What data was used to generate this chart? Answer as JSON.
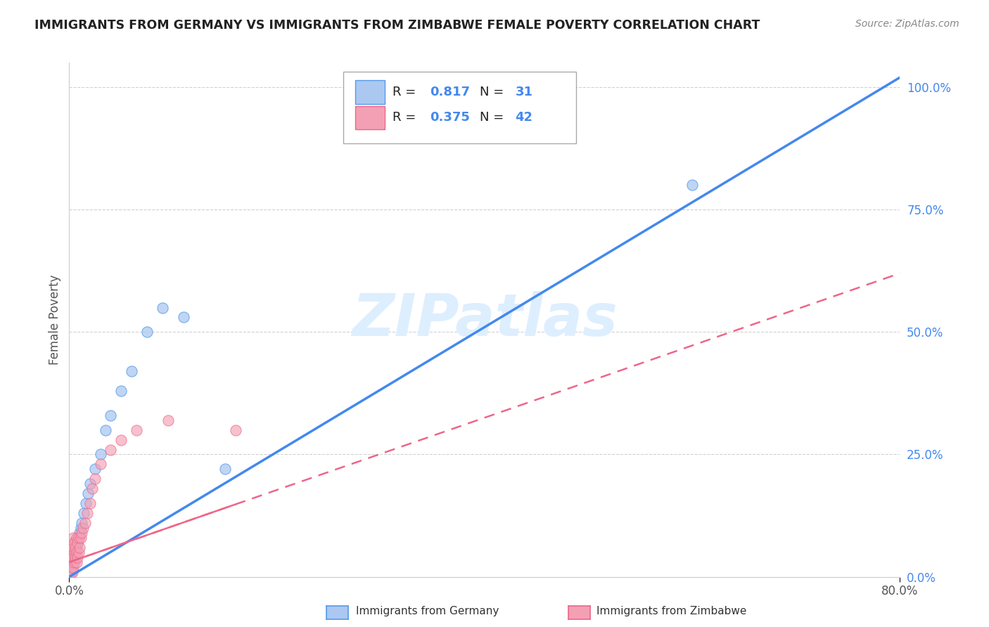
{
  "title": "IMMIGRANTS FROM GERMANY VS IMMIGRANTS FROM ZIMBABWE FEMALE POVERTY CORRELATION CHART",
  "source": "Source: ZipAtlas.com",
  "ylabel": "Female Poverty",
  "x_min": 0.0,
  "x_max": 0.8,
  "y_min": 0.0,
  "y_max": 1.05,
  "yticks": [
    0.0,
    0.25,
    0.5,
    0.75,
    1.0
  ],
  "ytick_labels": [
    "0.0%",
    "25.0%",
    "50.0%",
    "75.0%",
    "100.0%"
  ],
  "germany_R": 0.817,
  "germany_N": 31,
  "zimbabwe_R": 0.375,
  "zimbabwe_N": 42,
  "germany_color": "#aac8f0",
  "zimbabwe_color": "#f4a0b4",
  "germany_edge_color": "#5599ee",
  "zimbabwe_edge_color": "#ee6688",
  "germany_line_color": "#4488ee",
  "zimbabwe_line_color": "#ee6688",
  "watermark_color": "#ddeeff",
  "background_color": "#ffffff",
  "grid_color": "#cccccc",
  "label_color_blue": "#4488ee",
  "germany_scatter_x": [
    0.001,
    0.002,
    0.002,
    0.003,
    0.003,
    0.004,
    0.004,
    0.005,
    0.005,
    0.006,
    0.007,
    0.008,
    0.009,
    0.01,
    0.011,
    0.012,
    0.014,
    0.016,
    0.018,
    0.02,
    0.025,
    0.03,
    0.035,
    0.04,
    0.05,
    0.06,
    0.075,
    0.09,
    0.11,
    0.15,
    0.6
  ],
  "germany_scatter_y": [
    0.01,
    0.01,
    0.02,
    0.02,
    0.03,
    0.03,
    0.04,
    0.04,
    0.05,
    0.05,
    0.06,
    0.07,
    0.08,
    0.09,
    0.1,
    0.11,
    0.13,
    0.15,
    0.17,
    0.19,
    0.22,
    0.25,
    0.3,
    0.33,
    0.38,
    0.42,
    0.5,
    0.55,
    0.53,
    0.22,
    0.8
  ],
  "zimbabwe_scatter_x": [
    0.001,
    0.001,
    0.001,
    0.002,
    0.002,
    0.002,
    0.002,
    0.003,
    0.003,
    0.003,
    0.003,
    0.004,
    0.004,
    0.004,
    0.004,
    0.005,
    0.005,
    0.005,
    0.006,
    0.006,
    0.007,
    0.007,
    0.007,
    0.008,
    0.008,
    0.009,
    0.009,
    0.01,
    0.011,
    0.012,
    0.013,
    0.015,
    0.017,
    0.02,
    0.022,
    0.025,
    0.03,
    0.04,
    0.05,
    0.065,
    0.095,
    0.16
  ],
  "zimbabwe_scatter_y": [
    0.01,
    0.02,
    0.03,
    0.01,
    0.02,
    0.04,
    0.05,
    0.01,
    0.03,
    0.05,
    0.07,
    0.02,
    0.04,
    0.06,
    0.08,
    0.03,
    0.05,
    0.07,
    0.04,
    0.06,
    0.03,
    0.05,
    0.08,
    0.04,
    0.07,
    0.05,
    0.08,
    0.06,
    0.08,
    0.09,
    0.1,
    0.11,
    0.13,
    0.15,
    0.18,
    0.2,
    0.23,
    0.26,
    0.28,
    0.3,
    0.32,
    0.3
  ],
  "germany_line_x": [
    0.0,
    0.8
  ],
  "germany_line_y": [
    0.0,
    1.02
  ],
  "zimbabwe_line_x": [
    0.0,
    0.8
  ],
  "zimbabwe_line_y": [
    0.03,
    0.62
  ]
}
